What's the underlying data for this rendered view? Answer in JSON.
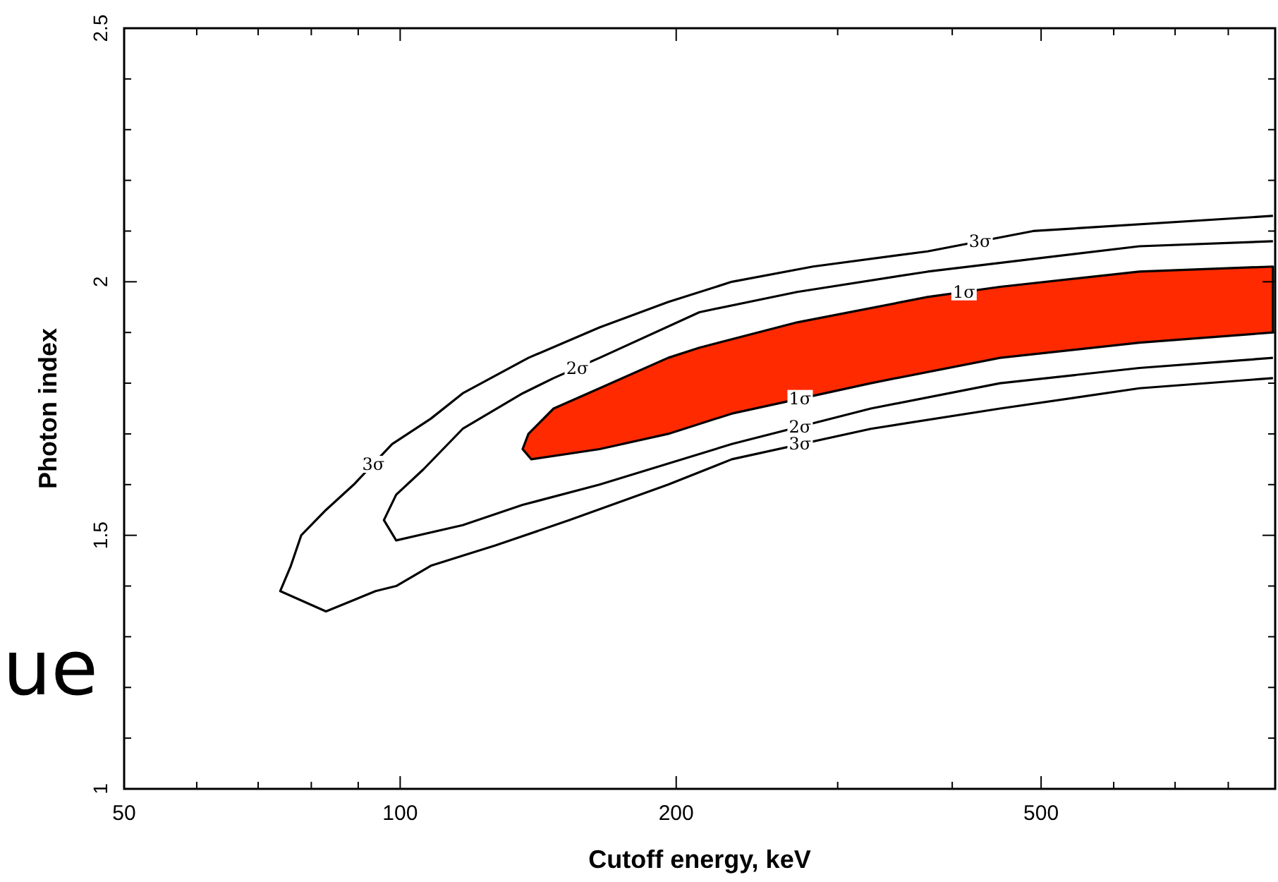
{
  "chart_data": {
    "type": "line",
    "xlabel": "Cutoff energy, keV",
    "ylabel": "Photon index",
    "log": "x",
    "grid": false,
    "xlim": [
      50,
      900
    ],
    "ylim": [
      1,
      2.5
    ],
    "xticks": [
      50,
      {
        "value": 60,
        "label": null
      },
      {
        "value": 70,
        "label": null
      },
      {
        "value": 80,
        "label": null
      },
      {
        "value": 90,
        "label": null
      },
      100,
      200,
      {
        "value": 300,
        "label": null
      },
      {
        "value": 400,
        "label": null
      },
      500,
      {
        "value": 600,
        "label": null
      },
      {
        "value": 700,
        "label": null
      },
      {
        "value": 800,
        "label": null
      }
    ],
    "yticks": [
      1,
      {
        "value": 1.1,
        "label": null
      },
      {
        "value": 1.2,
        "label": null
      },
      {
        "value": 1.3,
        "label": null
      },
      {
        "value": 1.4,
        "label": null
      },
      1.5,
      {
        "value": 1.6,
        "label": null
      },
      {
        "value": 1.7,
        "label": null
      },
      {
        "value": 1.8,
        "label": null
      },
      {
        "value": 1.9,
        "label": null
      },
      2,
      {
        "value": 2.1,
        "label": null
      },
      {
        "value": 2.2,
        "label": null
      },
      {
        "value": 2.3,
        "label": null
      },
      {
        "value": 2.4,
        "label": null
      },
      2.5
    ],
    "series": [
      {
        "type": "area",
        "color": "#ff2a00",
        "x": [
          895,
          640,
          451,
          376,
          271,
          212,
          196,
          165,
          147,
          138,
          136,
          139,
          165,
          196,
          230,
          326,
          451,
          640,
          895
        ],
        "values": [
          2.03,
          2.02,
          1.99,
          1.97,
          1.92,
          1.87,
          1.85,
          1.79,
          1.75,
          1.7,
          1.67,
          1.65,
          1.67,
          1.7,
          1.74,
          1.8,
          1.85,
          1.88,
          1.9
        ]
      },
      {
        "color": "#000000",
        "x": [
          895,
          640,
          376,
          271,
          212,
          165,
          147,
          136,
          117,
          106,
          99,
          96,
          99,
          117,
          136,
          165,
          230,
          326,
          451,
          640,
          895
        ],
        "values": [
          2.08,
          2.07,
          2.02,
          1.98,
          1.94,
          1.85,
          1.81,
          1.78,
          1.71,
          1.63,
          1.58,
          1.53,
          1.49,
          1.52,
          1.56,
          1.6,
          1.68,
          1.75,
          1.8,
          1.83,
          1.85
        ]
      },
      {
        "color": "#000000",
        "x": [
          895,
          490,
          376,
          282,
          230,
          196,
          165,
          138,
          117,
          108,
          98,
          89,
          83,
          78,
          76,
          74,
          83,
          94,
          99,
          108,
          117,
          127,
          153,
          196,
          230,
          326,
          451,
          640,
          895
        ],
        "values": [
          2.13,
          2.1,
          2.06,
          2.03,
          2.0,
          1.96,
          1.91,
          1.85,
          1.78,
          1.73,
          1.68,
          1.6,
          1.55,
          1.5,
          1.44,
          1.39,
          1.35,
          1.39,
          1.4,
          1.44,
          1.46,
          1.48,
          1.53,
          1.6,
          1.65,
          1.71,
          1.75,
          1.79,
          1.81
        ]
      }
    ],
    "annotations": [
      {
        "text": "3σ",
        "x": 429,
        "y": 2.08
      },
      {
        "text": "1σ",
        "x": 412,
        "y": 1.98
      },
      {
        "text": "2σ",
        "x": 156,
        "y": 1.83
      },
      {
        "text": "3σ",
        "x": 93.5,
        "y": 1.64
      },
      {
        "text": "1σ",
        "x": 273,
        "y": 1.77
      },
      {
        "text": "2σ",
        "x": 273,
        "y": 1.714
      },
      {
        "text": "3σ",
        "x": 273,
        "y": 1.68
      },
      "ue"
    ]
  }
}
